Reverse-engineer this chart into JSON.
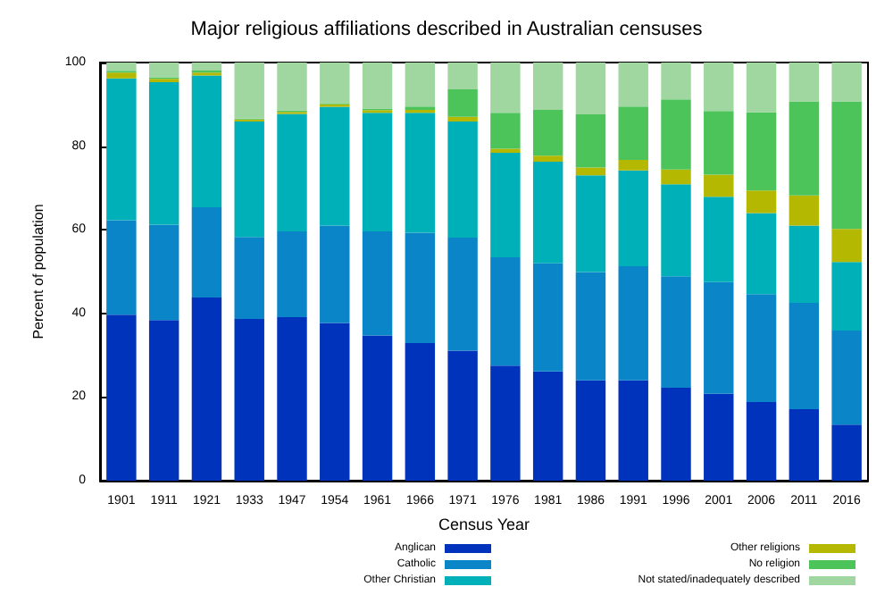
{
  "chart_data": {
    "type": "bar",
    "stacked": true,
    "title": "Major religious affiliations described in Australian censuses",
    "xlabel": "Census Year",
    "ylabel": "Percent of population",
    "categories": [
      "1901",
      "1911",
      "1921",
      "1933",
      "1947",
      "1954",
      "1961",
      "1966",
      "1971",
      "1976",
      "1981",
      "1986",
      "1991",
      "1996",
      "2001",
      "2006",
      "2011",
      "2016"
    ],
    "series": [
      {
        "name": "Anglican",
        "color": "#0033bb",
        "values": [
          39.7,
          38.4,
          43.8,
          38.7,
          39.1,
          37.7,
          34.7,
          32.9,
          31.1,
          27.5,
          26.1,
          24.0,
          24.0,
          22.2,
          20.8,
          18.8,
          17.1,
          13.4
        ]
      },
      {
        "name": "Catholic",
        "color": "#0a86c8",
        "values": [
          22.6,
          22.8,
          21.6,
          19.6,
          20.5,
          23.3,
          24.9,
          26.4,
          27.0,
          25.9,
          25.9,
          25.9,
          27.3,
          26.7,
          26.7,
          25.8,
          25.4,
          22.5
        ]
      },
      {
        "name": "Other Christian",
        "color": "#00b0b8",
        "values": [
          33.9,
          34.1,
          31.5,
          27.6,
          28.1,
          28.4,
          28.4,
          28.7,
          27.8,
          25.0,
          24.3,
          23.1,
          22.9,
          22.0,
          20.4,
          19.4,
          18.5,
          16.4
        ]
      },
      {
        "name": "Other religions",
        "color": "#b5b800",
        "values": [
          1.4,
          0.8,
          0.7,
          0.5,
          0.5,
          0.6,
          0.6,
          0.7,
          1.1,
          1.0,
          1.4,
          1.9,
          2.5,
          3.5,
          5.3,
          5.4,
          7.2,
          7.9
        ]
      },
      {
        "name": "No religion",
        "color": "#4cc45a",
        "values": [
          0.4,
          0.4,
          0.5,
          0.2,
          0.3,
          0.3,
          0.4,
          0.8,
          6.6,
          8.6,
          11.0,
          12.7,
          12.8,
          16.8,
          15.2,
          18.7,
          22.5,
          30.5
        ]
      },
      {
        "name": "Not stated/inadequately described",
        "color": "#a0d6a0",
        "values": [
          2.0,
          3.5,
          1.9,
          13.4,
          11.5,
          9.7,
          11.0,
          10.5,
          6.4,
          12.0,
          11.3,
          12.4,
          10.5,
          8.8,
          11.6,
          11.9,
          9.3,
          9.3
        ]
      }
    ],
    "ylim": [
      0,
      100
    ],
    "yticks": [
      0,
      20,
      40,
      60,
      80,
      100
    ],
    "grid": false,
    "legend": "bottom"
  }
}
